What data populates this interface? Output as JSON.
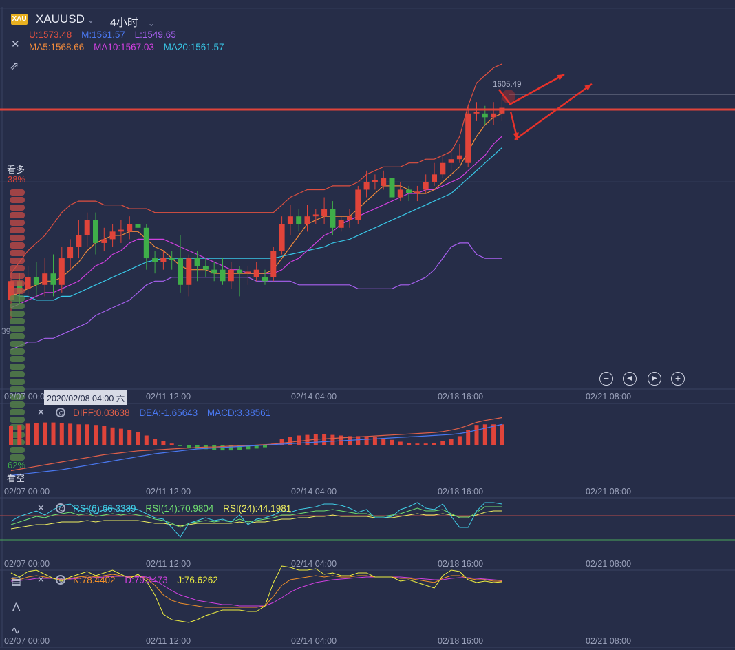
{
  "header": {
    "logo_text": "XAU",
    "symbol": "XAUUSD",
    "period": "4小时",
    "boll": {
      "u": "U:1573.48",
      "m": "M:1561.57",
      "l": "L:1549.65"
    },
    "ma": {
      "ma5": "MA5:1568.66",
      "ma10": "MA10:1567.03",
      "ma20": "MA20:1561.57"
    }
  },
  "sentiment": {
    "bull_label": "看多",
    "bull_pct": "38%",
    "bear_label": "看空",
    "bear_pct": "62%",
    "side_value": "39"
  },
  "crosshair_date": "2020/02/08 04:00 六",
  "macd_legend": {
    "diff": "DIFF:0.03638",
    "dea": "DEA:-1.65643",
    "macd": "MACD:3.38561"
  },
  "rsi_legend": {
    "r6": "RSI(6):66.3339",
    "r14": "RSI(14):70.9804",
    "r24": "RSI(24):44.1981"
  },
  "kdj_legend": {
    "k": "K:78.4402",
    "d": "D:79.3473",
    "j": "J:76.6262"
  },
  "colors": {
    "bg": "#262d48",
    "up": "#e0443a",
    "down": "#3fae49",
    "ma5": "#f08a3c",
    "ma10": "#d040e0",
    "ma20": "#38c8e8",
    "boll_u": "#e05040",
    "boll_l": "#a860f0",
    "diff": "#e0604a",
    "dea": "#4a78f0",
    "rsi6": "#40d0e8",
    "rsi14": "#70e070",
    "rsi24": "#f0f060",
    "k": "#f0902a",
    "d": "#d040e0",
    "j": "#f0f040"
  },
  "chart_data": {
    "type": "candlestick",
    "instrument": "XAUUSD",
    "timeframe": "4小时",
    "x_ticks": [
      "02/07 00:00",
      "02/11 12:00",
      "02/14 04:00",
      "02/18 16:00",
      "02/21 08:00"
    ],
    "price_marker": "1605.49",
    "candles": [
      {
        "o": 1555,
        "c": 1560,
        "h": 1563,
        "l": 1550
      },
      {
        "o": 1560,
        "c": 1557,
        "h": 1562,
        "l": 1554
      },
      {
        "o": 1558,
        "c": 1561,
        "h": 1564,
        "l": 1555
      },
      {
        "o": 1561,
        "c": 1559,
        "h": 1565,
        "l": 1556
      },
      {
        "o": 1559,
        "c": 1562,
        "h": 1566,
        "l": 1556
      },
      {
        "o": 1562,
        "c": 1559,
        "h": 1567,
        "l": 1556
      },
      {
        "o": 1559,
        "c": 1566,
        "h": 1569,
        "l": 1557
      },
      {
        "o": 1566,
        "c": 1569,
        "h": 1571,
        "l": 1563
      },
      {
        "o": 1569,
        "c": 1572,
        "h": 1576,
        "l": 1566
      },
      {
        "o": 1572,
        "c": 1576,
        "h": 1578,
        "l": 1569
      },
      {
        "o": 1576,
        "c": 1570,
        "h": 1578,
        "l": 1567
      },
      {
        "o": 1570,
        "c": 1571,
        "h": 1574,
        "l": 1568
      },
      {
        "o": 1571,
        "c": 1573,
        "h": 1575,
        "l": 1569
      },
      {
        "o": 1573,
        "c": 1573.5,
        "h": 1576,
        "l": 1570
      },
      {
        "o": 1573,
        "c": 1575,
        "h": 1577,
        "l": 1571
      },
      {
        "o": 1575,
        "c": 1574,
        "h": 1577,
        "l": 1571
      },
      {
        "o": 1574,
        "c": 1566,
        "h": 1575,
        "l": 1563
      },
      {
        "o": 1566,
        "c": 1565,
        "h": 1568,
        "l": 1562
      },
      {
        "o": 1565,
        "c": 1566,
        "h": 1568,
        "l": 1563
      },
      {
        "o": 1566,
        "c": 1565.5,
        "h": 1568,
        "l": 1563
      },
      {
        "o": 1566,
        "c": 1559,
        "h": 1572,
        "l": 1557
      },
      {
        "o": 1559,
        "c": 1566,
        "h": 1567,
        "l": 1556
      },
      {
        "o": 1566,
        "c": 1564,
        "h": 1568,
        "l": 1560
      },
      {
        "o": 1564,
        "c": 1563,
        "h": 1566,
        "l": 1561
      },
      {
        "o": 1563,
        "c": 1562,
        "h": 1565,
        "l": 1560
      },
      {
        "o": 1563,
        "c": 1560,
        "h": 1566,
        "l": 1559
      },
      {
        "o": 1560,
        "c": 1563,
        "h": 1565,
        "l": 1558
      },
      {
        "o": 1563,
        "c": 1562,
        "h": 1564,
        "l": 1556
      },
      {
        "o": 1562,
        "c": 1562.5,
        "h": 1564,
        "l": 1559
      },
      {
        "o": 1561,
        "c": 1563,
        "h": 1565,
        "l": 1560
      },
      {
        "o": 1561,
        "c": 1560,
        "h": 1563,
        "l": 1559
      },
      {
        "o": 1561,
        "c": 1568,
        "h": 1569,
        "l": 1560
      },
      {
        "o": 1568,
        "c": 1575,
        "h": 1577,
        "l": 1567
      },
      {
        "o": 1575,
        "c": 1577,
        "h": 1580,
        "l": 1572
      },
      {
        "o": 1577,
        "c": 1575,
        "h": 1579,
        "l": 1573
      },
      {
        "o": 1575,
        "c": 1577,
        "h": 1580,
        "l": 1573
      },
      {
        "o": 1577,
        "c": 1577.5,
        "h": 1579,
        "l": 1575
      },
      {
        "o": 1577,
        "c": 1579,
        "h": 1582,
        "l": 1575
      },
      {
        "o": 1579,
        "c": 1574,
        "h": 1581,
        "l": 1572
      },
      {
        "o": 1574,
        "c": 1576,
        "h": 1577,
        "l": 1573
      },
      {
        "o": 1576,
        "c": 1577,
        "h": 1579,
        "l": 1574
      },
      {
        "o": 1576,
        "c": 1584,
        "h": 1585,
        "l": 1575
      },
      {
        "o": 1584,
        "c": 1586,
        "h": 1589,
        "l": 1582
      },
      {
        "o": 1586,
        "c": 1586.5,
        "h": 1588,
        "l": 1584
      },
      {
        "o": 1585,
        "c": 1587,
        "h": 1589,
        "l": 1584
      },
      {
        "o": 1587,
        "c": 1582,
        "h": 1588,
        "l": 1580
      },
      {
        "o": 1582,
        "c": 1584,
        "h": 1586,
        "l": 1581
      },
      {
        "o": 1584,
        "c": 1583,
        "h": 1585,
        "l": 1581
      },
      {
        "o": 1583,
        "c": 1583.5,
        "h": 1585,
        "l": 1581
      },
      {
        "o": 1584,
        "c": 1586,
        "h": 1588,
        "l": 1583
      },
      {
        "o": 1586,
        "c": 1588,
        "h": 1591,
        "l": 1585
      },
      {
        "o": 1588,
        "c": 1591,
        "h": 1593,
        "l": 1587
      },
      {
        "o": 1591,
        "c": 1592,
        "h": 1594,
        "l": 1589
      },
      {
        "o": 1592,
        "c": 1593,
        "h": 1596,
        "l": 1591
      },
      {
        "o": 1591,
        "c": 1604,
        "h": 1606,
        "l": 1590
      },
      {
        "o": 1604,
        "c": 1604.5,
        "h": 1607,
        "l": 1602
      },
      {
        "o": 1604,
        "c": 1603,
        "h": 1606,
        "l": 1601
      },
      {
        "o": 1603,
        "c": 1604,
        "h": 1607,
        "l": 1601
      },
      {
        "o": 1604,
        "c": 1605.49,
        "h": 1608,
        "l": 1602
      }
    ],
    "boll_u": [
      1562,
      1565,
      1568,
      1570,
      1572,
      1575,
      1578,
      1580,
      1581,
      1581,
      1581,
      1580,
      1580,
      1580,
      1579,
      1579,
      1579,
      1578,
      1578,
      1578,
      1578,
      1578,
      1578,
      1578,
      1578,
      1578,
      1578,
      1578,
      1578,
      1578,
      1578,
      1578,
      1580,
      1582,
      1583,
      1584,
      1584,
      1584,
      1585,
      1585,
      1585,
      1586,
      1588,
      1589,
      1590,
      1590,
      1590,
      1591,
      1591,
      1592,
      1592,
      1593,
      1594,
      1598,
      1606,
      1612,
      1614,
      1616,
      1617
    ],
    "boll_m": [
      1555,
      1555,
      1556,
      1556,
      1557,
      1557,
      1558,
      1559,
      1560,
      1561,
      1562,
      1563,
      1563.5,
      1564,
      1564.5,
      1565,
      1565,
      1565,
      1565.5,
      1566,
      1566,
      1566,
      1566,
      1566,
      1566,
      1566,
      1566,
      1566,
      1566,
      1566,
      1566,
      1566,
      1566.5,
      1567,
      1567.5,
      1568,
      1568.5,
      1569,
      1570,
      1570.5,
      1571,
      1572,
      1573,
      1574,
      1575,
      1576,
      1577,
      1578,
      1579,
      1580,
      1581,
      1582,
      1583,
      1585,
      1588,
      1591,
      1593,
      1595,
      1597
    ],
    "boll_l": [
      1542,
      1543,
      1544,
      1544,
      1545,
      1545,
      1546,
      1547,
      1548,
      1549,
      1551,
      1552,
      1553,
      1554,
      1555,
      1557,
      1559,
      1560,
      1560,
      1561,
      1561,
      1561,
      1561,
      1561,
      1561,
      1561,
      1561,
      1561,
      1561,
      1560,
      1560,
      1560,
      1560,
      1560,
      1559,
      1559,
      1559,
      1559,
      1559,
      1559,
      1559,
      1558,
      1558,
      1558,
      1558,
      1558,
      1559,
      1559,
      1560,
      1561,
      1563,
      1566,
      1569,
      1570,
      1570,
      1567,
      1566,
      1566,
      1566
    ],
    "ma5": [
      1556,
      1557,
      1558,
      1559,
      1560,
      1560,
      1561,
      1563,
      1565,
      1568,
      1570,
      1571,
      1572,
      1572,
      1573,
      1573,
      1571,
      1569,
      1568,
      1566,
      1564,
      1563,
      1563,
      1563,
      1562,
      1562,
      1562,
      1562,
      1562,
      1562,
      1562,
      1563,
      1566,
      1569,
      1572,
      1575,
      1576,
      1577,
      1577,
      1577,
      1577,
      1579,
      1581,
      1583,
      1585,
      1585,
      1585,
      1584,
      1583,
      1583,
      1584,
      1586,
      1588,
      1590,
      1594,
      1598,
      1601,
      1603,
      1604
    ],
    "ma10": [
      1553,
      1554,
      1555,
      1556,
      1557,
      1557,
      1558,
      1559,
      1560,
      1562,
      1564,
      1565,
      1567,
      1568,
      1570,
      1571,
      1571,
      1571,
      1571,
      1570,
      1569,
      1568,
      1567,
      1566,
      1565,
      1564,
      1563,
      1563,
      1562,
      1562,
      1562,
      1562,
      1563,
      1565,
      1566,
      1568,
      1570,
      1572,
      1573,
      1575,
      1576,
      1577,
      1578,
      1579,
      1580,
      1581,
      1582,
      1583,
      1583,
      1584,
      1584,
      1585,
      1586,
      1587,
      1589,
      1591,
      1593,
      1596,
      1598
    ],
    "ma20": [
      1557,
      1556,
      1556,
      1555,
      1555,
      1555,
      1556,
      1556,
      1557,
      1558,
      1559,
      1560,
      1561,
      1562,
      1563,
      1564,
      1565,
      1565.5,
      1566,
      1566,
      1566,
      1566,
      1566,
      1566,
      1566,
      1566,
      1566,
      1566,
      1566,
      1566,
      1566,
      1566,
      1566.5,
      1567,
      1567.5,
      1568,
      1568.5,
      1569,
      1570,
      1570.5,
      1571,
      1572,
      1573,
      1574,
      1575,
      1576,
      1577,
      1578,
      1579,
      1580,
      1581,
      1582,
      1583,
      1585,
      1587,
      1589,
      1591,
      1593,
      1595
    ],
    "macd": {
      "hist": [
        3,
        3.2,
        3.4,
        3.5,
        3.6,
        3.6,
        3.5,
        3.4,
        3.3,
        3.3,
        3.2,
        3.0,
        2.8,
        2.6,
        2.4,
        2.0,
        1.5,
        1.0,
        0.6,
        0.2,
        -0.2,
        -0.5,
        -0.6,
        -0.7,
        -0.8,
        -0.9,
        -0.9,
        -0.8,
        -0.7,
        -0.6,
        -0.4,
        0.2,
        0.9,
        1.3,
        1.5,
        1.6,
        1.7,
        1.7,
        1.6,
        1.5,
        1.4,
        1.4,
        1.4,
        1.3,
        1.1,
        0.8,
        0.5,
        0.3,
        0.2,
        0.2,
        0.3,
        0.6,
        0.9,
        1.4,
        2.4,
        3.2,
        3.3,
        3.3,
        3.3
      ],
      "diff": [
        -4.5,
        -4.2,
        -3.9,
        -3.6,
        -3.3,
        -3.0,
        -2.7,
        -2.4,
        -2.1,
        -1.8,
        -1.5,
        -1.2,
        -1.0,
        -0.8,
        -0.6,
        -0.4,
        -0.3,
        -0.2,
        -0.1,
        0,
        0.1,
        0.2,
        0.3,
        0.4,
        0.4,
        0.5,
        0.6,
        0.6,
        0.7,
        0.8,
        0.9,
        1.0,
        1.2,
        1.4,
        1.6,
        1.8,
        2.0,
        2.1,
        2.2,
        2.3,
        2.4,
        2.5,
        2.6,
        2.7,
        2.8,
        2.9,
        3.0,
        3.1,
        3.2,
        3.3,
        3.4,
        3.6,
        3.9,
        4.3,
        4.9,
        5.5,
        5.9,
        6.2,
        6.5
      ],
      "dea": [
        -5.5,
        -5.3,
        -5.1,
        -4.9,
        -4.7,
        -4.5,
        -4.3,
        -4.0,
        -3.7,
        -3.4,
        -3.1,
        -2.8,
        -2.5,
        -2.2,
        -1.9,
        -1.6,
        -1.3,
        -1.0,
        -0.8,
        -0.6,
        -0.4,
        -0.2,
        0,
        0.1,
        0.2,
        0.3,
        0.4,
        0.5,
        0.6,
        0.7,
        0.8,
        0.9,
        1.0,
        1.1,
        1.2,
        1.3,
        1.4,
        1.5,
        1.6,
        1.7,
        1.8,
        1.9,
        2.0,
        2.1,
        2.2,
        2.3,
        2.4,
        2.5,
        2.6,
        2.7,
        2.8,
        2.9,
        3.0,
        3.2,
        3.5,
        3.9,
        4.3,
        4.7,
        5.1
      ]
    },
    "rsi": {
      "r6": [
        55,
        62,
        66,
        70,
        64,
        72,
        78,
        80,
        70,
        74,
        66,
        72,
        74,
        70,
        74,
        72,
        66,
        60,
        58,
        46,
        32,
        52,
        56,
        60,
        56,
        58,
        54,
        64,
        50,
        58,
        60,
        64,
        70,
        68,
        72,
        74,
        76,
        80,
        80,
        78,
        74,
        68,
        72,
        60,
        60,
        62,
        72,
        76,
        82,
        74,
        72,
        80,
        62,
        46,
        46,
        70,
        82,
        82,
        80
      ],
      "r14": [
        50,
        54,
        58,
        62,
        60,
        64,
        66,
        68,
        64,
        66,
        62,
        64,
        66,
        64,
        66,
        64,
        62,
        58,
        56,
        52,
        46,
        52,
        54,
        56,
        54,
        56,
        54,
        58,
        54,
        56,
        58,
        60,
        64,
        64,
        66,
        68,
        70,
        70,
        72,
        70,
        68,
        66,
        66,
        62,
        62,
        64,
        66,
        70,
        74,
        70,
        70,
        72,
        66,
        60,
        60,
        68,
        76,
        76,
        76
      ],
      "r24": [
        44,
        46,
        48,
        50,
        50,
        52,
        54,
        54,
        54,
        56,
        54,
        56,
        56,
        56,
        56,
        56,
        54,
        52,
        52,
        50,
        48,
        50,
        52,
        52,
        52,
        52,
        52,
        54,
        52,
        54,
        54,
        56,
        58,
        58,
        60,
        60,
        62,
        62,
        64,
        62,
        62,
        62,
        62,
        60,
        60,
        60,
        62,
        64,
        66,
        64,
        64,
        66,
        64,
        62,
        62,
        64,
        68,
        70,
        70
      ]
    },
    "kdj": {
      "k": [
        82,
        80,
        84,
        86,
        84,
        82,
        80,
        82,
        84,
        86,
        84,
        86,
        88,
        86,
        84,
        86,
        82,
        72,
        58,
        50,
        46,
        44,
        42,
        40,
        40,
        40,
        40,
        40,
        40,
        40,
        42,
        56,
        72,
        80,
        82,
        84,
        86,
        84,
        86,
        84,
        84,
        86,
        86,
        84,
        84,
        84,
        82,
        82,
        80,
        78,
        76,
        82,
        86,
        86,
        82,
        80,
        80,
        78,
        78
      ],
      "d": [
        78,
        79,
        80,
        82,
        82,
        82,
        81,
        81,
        82,
        83,
        83,
        84,
        85,
        85,
        85,
        85,
        84,
        79,
        72,
        64,
        58,
        54,
        50,
        48,
        46,
        44,
        44,
        42,
        42,
        42,
        42,
        47,
        54,
        62,
        68,
        72,
        76,
        78,
        80,
        81,
        82,
        83,
        84,
        84,
        84,
        84,
        84,
        83,
        82,
        81,
        80,
        80,
        82,
        83,
        83,
        82,
        81,
        80,
        79
      ],
      "j": [
        90,
        84,
        92,
        94,
        88,
        82,
        78,
        84,
        88,
        92,
        86,
        90,
        94,
        88,
        82,
        88,
        78,
        58,
        30,
        22,
        20,
        18,
        22,
        28,
        32,
        36,
        36,
        36,
        34,
        34,
        42,
        76,
        100,
        98,
        94,
        94,
        96,
        88,
        90,
        86,
        86,
        90,
        90,
        84,
        84,
        84,
        78,
        80,
        76,
        72,
        68,
        86,
        94,
        92,
        80,
        76,
        78,
        76,
        77
      ]
    }
  }
}
